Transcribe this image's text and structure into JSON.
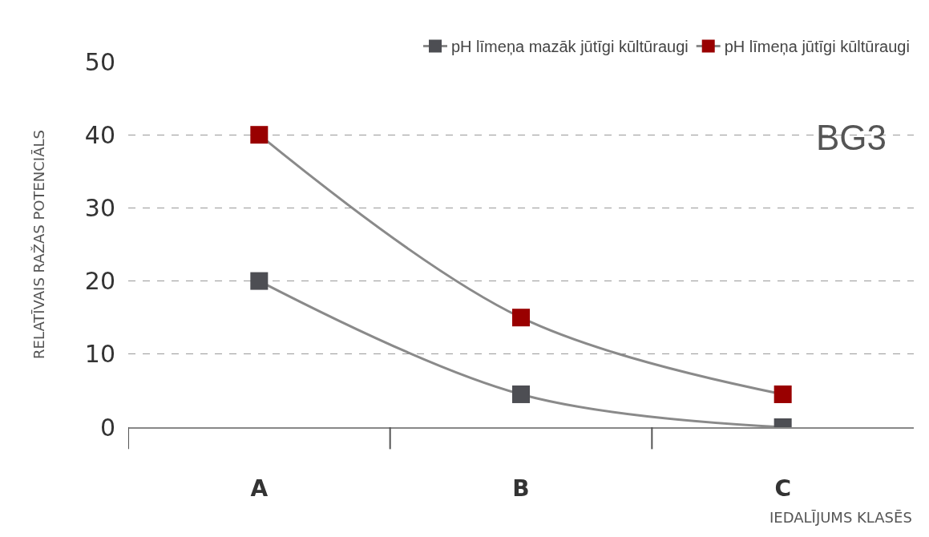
{
  "chart_data": {
    "type": "line",
    "xlabel": "IEDALĪJUMS KLASĒS",
    "ylabel": "RELATĪVAIS RAŽAS POTENCIĀLS",
    "categories": [
      "A",
      "B",
      "C"
    ],
    "series": [
      {
        "name": "pH līmeņa mazāk jūtīgi kūltūraugi",
        "color": "#4d4e53",
        "values": [
          20,
          4.5,
          0
        ]
      },
      {
        "name": "pH līmeņa jūtīgi kūltūraugi",
        "color": "#990000",
        "values": [
          40,
          15,
          4.5
        ]
      }
    ],
    "ylim": [
      0,
      50
    ],
    "yticks": [
      0,
      10,
      20,
      30,
      40,
      50
    ],
    "grid": "y",
    "legend": "top right",
    "marker": "square",
    "line_style": "solid",
    "annotations": [
      "BG3"
    ]
  }
}
